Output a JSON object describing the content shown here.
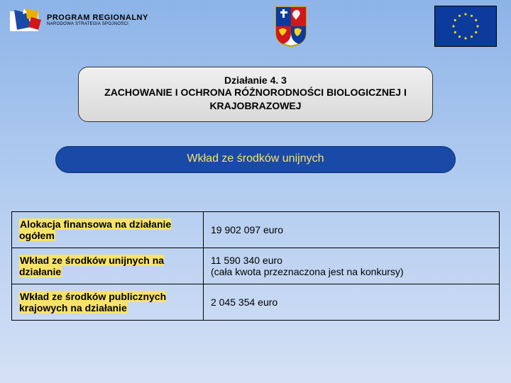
{
  "header": {
    "program_title": "PROGRAM REGIONALNY",
    "program_subtitle": "NARODOWA STRATEGIA SPÓJNOŚCI"
  },
  "title_box": {
    "line1": "Działanie 4. 3",
    "line2": "ZACHOWANIE I OCHRONA RÓŻNORODNOŚCI BIOLOGICZNEJ I KRAJOBRAZOWEJ"
  },
  "subtitle": {
    "text": "Wkład ze środków unijnych"
  },
  "table": {
    "rows": [
      {
        "label": "Alokacja finansowa na działanie ogółem",
        "value": "19 902 097 euro"
      },
      {
        "label": "Wkład ze środków unijnych na działanie",
        "value": "11 590 340 euro\n(cała kwota przeznaczona jest na konkursy)"
      },
      {
        "label": "Wkład ze środków publicznych krajowych na działanie",
        "value": "2 045 354 euro"
      }
    ]
  },
  "colors": {
    "pill_bg": "#1a4aa8",
    "highlight": "#f7e36a",
    "eu_blue": "#0b3b9c",
    "eu_gold": "#f7d417"
  }
}
